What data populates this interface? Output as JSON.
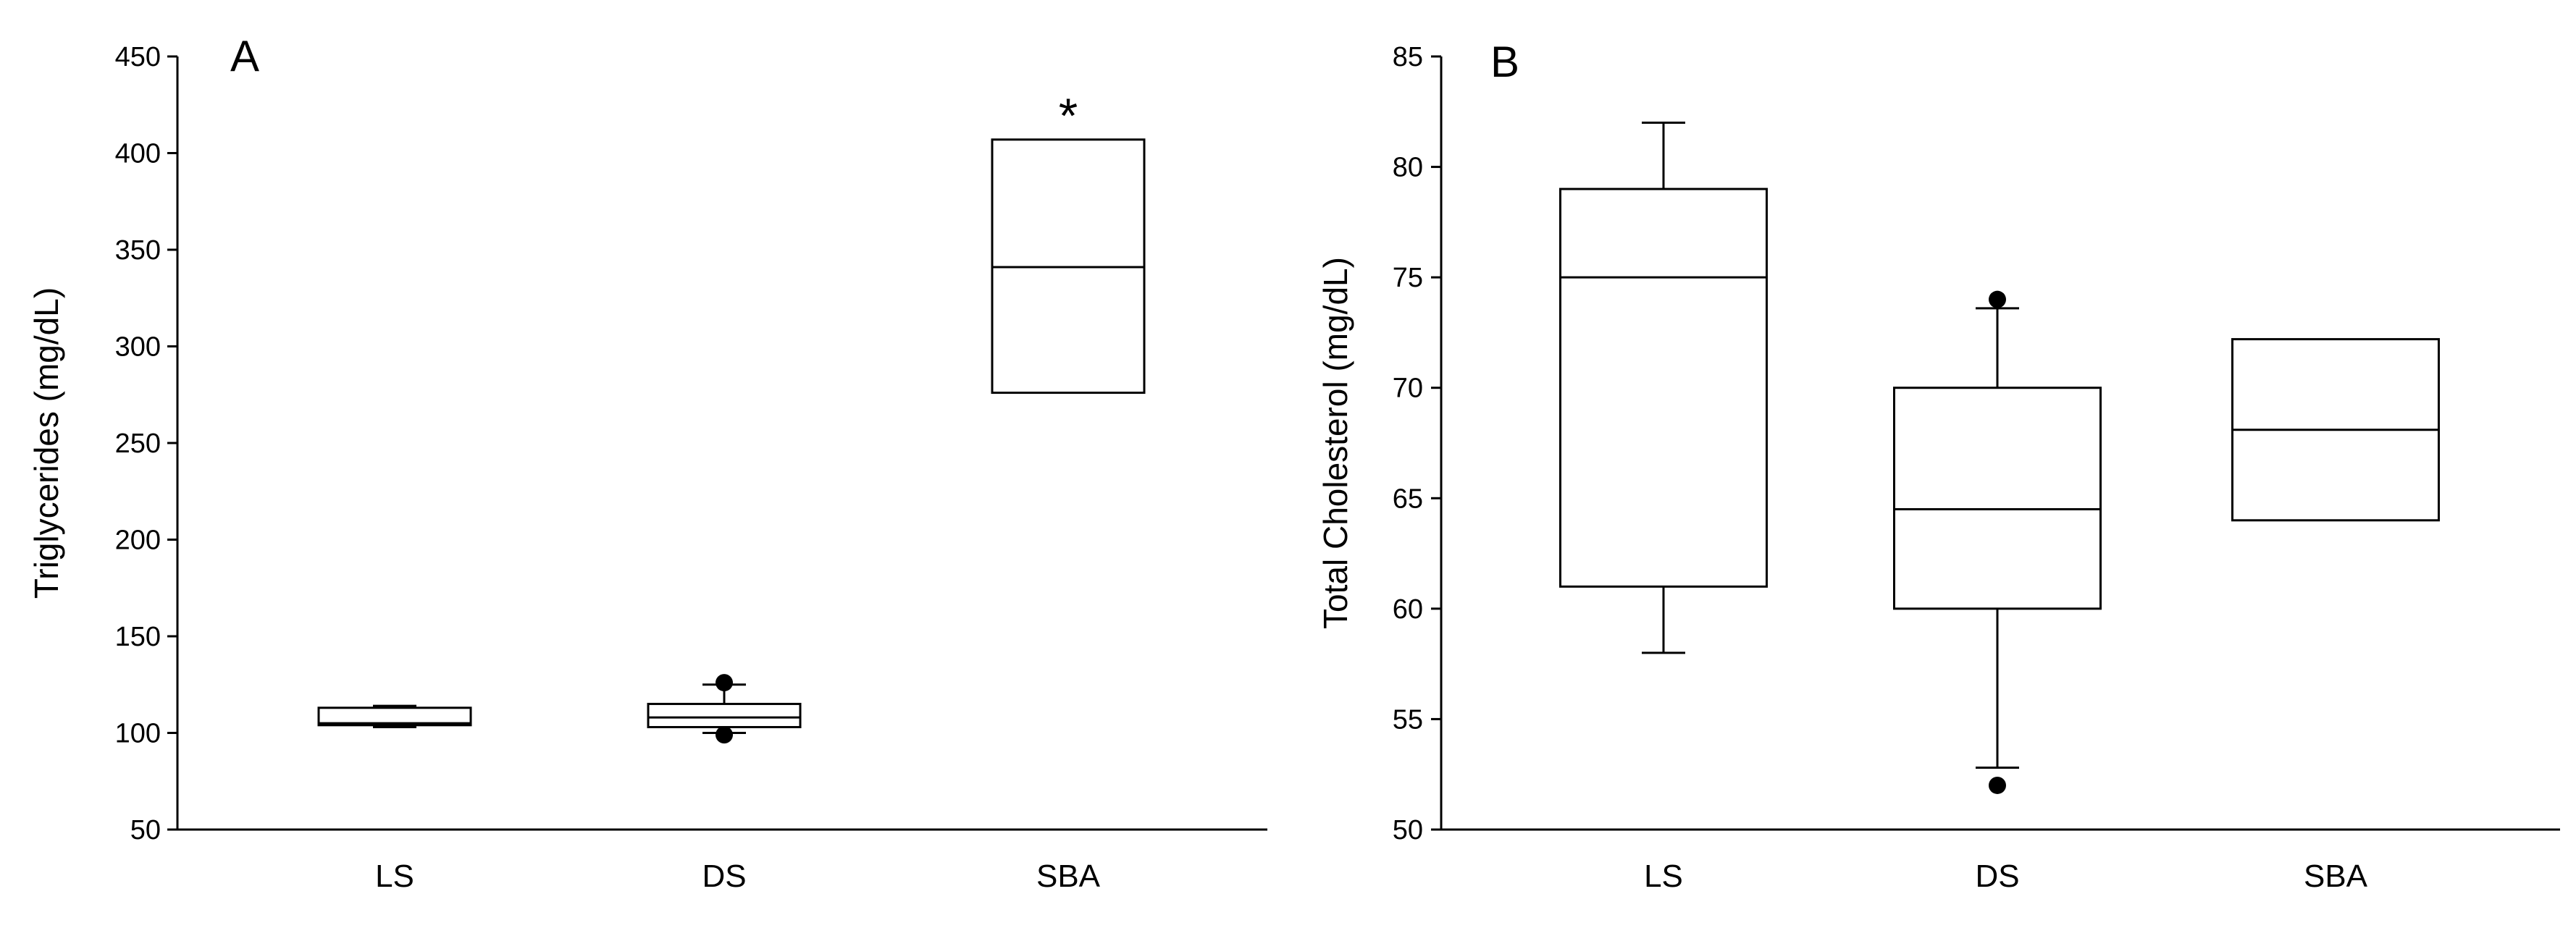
{
  "chart_data": [
    {
      "type": "box",
      "panel_label": "A",
      "title": "",
      "xlabel": "",
      "ylabel": "Triglycerides (mg/dL)",
      "ylim": [
        50,
        450
      ],
      "yticks": [
        50,
        100,
        150,
        200,
        250,
        300,
        350,
        400,
        450
      ],
      "categories": [
        "LS",
        "DS",
        "SBA"
      ],
      "boxes": [
        {
          "category": "LS",
          "whisker_low": 103,
          "q1": 104,
          "median": 105,
          "q3": 113,
          "whisker_high": 114,
          "outliers": []
        },
        {
          "category": "DS",
          "whisker_low": 100,
          "q1": 103,
          "median": 108,
          "q3": 115,
          "whisker_high": 125,
          "outliers": [
            99,
            126
          ]
        },
        {
          "category": "SBA",
          "whisker_low": null,
          "q1": 276,
          "median": 341,
          "q3": 407,
          "whisker_high": null,
          "outliers": []
        }
      ],
      "annotations": [
        {
          "category": "SBA",
          "text": "*"
        }
      ]
    },
    {
      "type": "box",
      "panel_label": "B",
      "title": "",
      "xlabel": "",
      "ylabel": "Total Cholesterol (mg/dL)",
      "ylim": [
        50,
        85
      ],
      "yticks": [
        50,
        55,
        60,
        65,
        70,
        75,
        80,
        85
      ],
      "categories": [
        "LS",
        "DS",
        "SBA"
      ],
      "boxes": [
        {
          "category": "LS",
          "whisker_low": 58,
          "q1": 61,
          "median": 75,
          "q3": 79,
          "whisker_high": 82,
          "outliers": []
        },
        {
          "category": "DS",
          "whisker_low": 52.8,
          "q1": 60,
          "median": 64.5,
          "q3": 70,
          "whisker_high": 73.6,
          "outliers": [
            52,
            74
          ]
        },
        {
          "category": "SBA",
          "whisker_low": null,
          "q1": 64,
          "median": 68.1,
          "q3": 72.2,
          "whisker_high": null,
          "outliers": []
        }
      ],
      "annotations": []
    }
  ]
}
